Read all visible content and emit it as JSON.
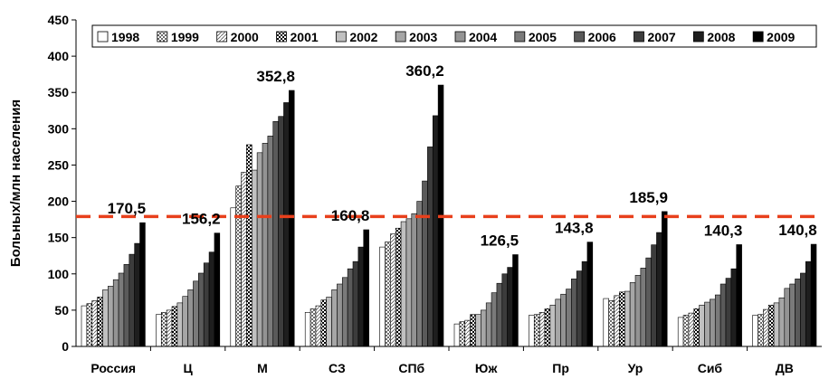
{
  "chart_data": {
    "type": "bar",
    "title": "",
    "xlabel": "",
    "ylabel": "Больных/млн населения",
    "ylim": [
      0,
      450
    ],
    "yticks": [
      0,
      50,
      100,
      150,
      200,
      250,
      300,
      350,
      400,
      450
    ],
    "grid": false,
    "legend_position": "top",
    "reference_line": {
      "value": 179,
      "color": "#e8401c",
      "style": "dashed"
    },
    "categories": [
      "Россия",
      "Ц",
      "М",
      "СЗ",
      "СПб",
      "Юж",
      "Пр",
      "Ур",
      "Сиб",
      "ДВ"
    ],
    "series": [
      {
        "name": "1998",
        "fill": "#ffffff",
        "pattern": "none",
        "values": [
          56,
          44,
          191,
          47,
          137,
          31,
          43,
          66,
          40,
          43
        ]
      },
      {
        "name": "1999",
        "fill": "#ffffff",
        "pattern": "dots",
        "values": [
          59,
          47,
          221,
          52,
          144,
          34,
          44,
          63,
          43,
          44
        ]
      },
      {
        "name": "2000",
        "fill": "#ffffff",
        "pattern": "diag",
        "values": [
          63,
          50,
          240,
          56,
          155,
          36,
          47,
          70,
          46,
          51
        ]
      },
      {
        "name": "2001",
        "fill": "#404040",
        "pattern": "checker",
        "values": [
          68,
          55,
          278,
          64,
          163,
          44,
          52,
          75,
          52,
          57
        ]
      },
      {
        "name": "2002",
        "fill": "#c0c0c0",
        "pattern": "none",
        "values": [
          78,
          60,
          243,
          68,
          172,
          44,
          57,
          76,
          57,
          60
        ]
      },
      {
        "name": "2003",
        "fill": "#a6a6a6",
        "pattern": "none",
        "values": [
          83,
          69,
          267,
          78,
          176,
          50,
          65,
          88,
          61,
          67
        ]
      },
      {
        "name": "2004",
        "fill": "#939393",
        "pattern": "none",
        "values": [
          92,
          78,
          280,
          86,
          183,
          60,
          72,
          98,
          65,
          80
        ]
      },
      {
        "name": "2005",
        "fill": "#7a7a7a",
        "pattern": "none",
        "values": [
          101,
          90,
          290,
          95,
          200,
          74,
          79,
          108,
          71,
          86
        ]
      },
      {
        "name": "2006",
        "fill": "#5a5a5a",
        "pattern": "none",
        "values": [
          113,
          101,
          310,
          107,
          228,
          87,
          93,
          122,
          86,
          93
        ]
      },
      {
        "name": "2007",
        "fill": "#3c3c3c",
        "pattern": "none",
        "values": [
          127,
          115,
          317,
          117,
          275,
          100,
          104,
          140,
          94,
          101
        ]
      },
      {
        "name": "2008",
        "fill": "#1e1e1e",
        "pattern": "none",
        "values": [
          142,
          130,
          336,
          137,
          318,
          109,
          117,
          157,
          107,
          117
        ]
      },
      {
        "name": "2009",
        "fill": "#000000",
        "pattern": "none",
        "values": [
          170.5,
          156.2,
          352.8,
          160.8,
          360.2,
          126.5,
          143.8,
          185.9,
          140.3,
          140.8
        ]
      }
    ],
    "data_labels": [
      "170,5",
      "156,2",
      "352,8",
      "160,8",
      "360,2",
      "126,5",
      "143,8",
      "185,9",
      "140,3",
      "140,8"
    ]
  }
}
